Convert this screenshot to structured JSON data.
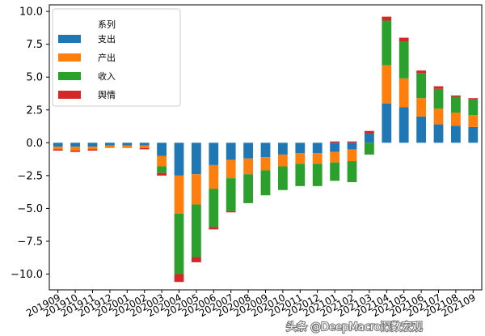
{
  "chart_data": {
    "type": "bar",
    "stacked": true,
    "title": "",
    "xlabel": "",
    "ylabel": "",
    "ylim": [
      -11.2,
      10.5
    ],
    "yticks": [
      -10.0,
      -7.5,
      -5.0,
      -2.5,
      0.0,
      2.5,
      5.0,
      7.5,
      10.0
    ],
    "ytick_labels": [
      "−10.0",
      "−7.5",
      "−5.0",
      "−2.5",
      "0.0",
      "2.5",
      "5.0",
      "7.5",
      "10.0"
    ],
    "categories": [
      "201909",
      "201910",
      "201911",
      "201912",
      "202001",
      "202002",
      "202003",
      "202004",
      "202005",
      "202006",
      "202007",
      "202008",
      "202009",
      "202010",
      "202011",
      "202012",
      "202101",
      "202102",
      "202103",
      "202104",
      "202105",
      "202106",
      "202107",
      "202108",
      "202109"
    ],
    "legend": {
      "title": "系列",
      "position": "upper-left"
    },
    "series": [
      {
        "name": "支出",
        "color": "#1f77b4",
        "values": [
          -0.3,
          -0.3,
          -0.3,
          -0.2,
          -0.2,
          -0.2,
          -1.0,
          -2.5,
          -2.4,
          -1.7,
          -1.3,
          -1.2,
          -1.1,
          -0.9,
          -0.8,
          -0.8,
          -0.7,
          -0.5,
          0.7,
          3.0,
          2.7,
          2.0,
          1.4,
          1.3,
          1.2
        ]
      },
      {
        "name": "产出",
        "color": "#ff7f0e",
        "values": [
          -0.2,
          -0.3,
          -0.2,
          -0.2,
          -0.2,
          -0.2,
          -0.8,
          -2.9,
          -2.3,
          -1.8,
          -1.4,
          -1.2,
          -1.0,
          -0.9,
          -0.8,
          -0.8,
          -0.8,
          -0.9,
          0.0,
          2.9,
          2.2,
          1.4,
          1.2,
          1.0,
          0.9
        ]
      },
      {
        "name": "收入",
        "color": "#2ca02c",
        "values": [
          0.0,
          0.0,
          0.0,
          0.0,
          0.0,
          0.0,
          -0.5,
          -4.6,
          -4.0,
          -2.9,
          -2.5,
          -2.2,
          -1.9,
          -1.8,
          -1.7,
          -1.7,
          -1.4,
          -1.6,
          -0.9,
          3.4,
          2.8,
          1.9,
          1.5,
          1.2,
          1.2
        ]
      },
      {
        "name": "舆情",
        "color": "#d62728",
        "values": [
          -0.1,
          -0.1,
          -0.1,
          0.0,
          0.0,
          -0.1,
          -0.2,
          -0.6,
          -0.4,
          -0.2,
          -0.1,
          0.0,
          0.0,
          0.0,
          0.0,
          0.0,
          0.1,
          0.1,
          0.2,
          0.3,
          0.3,
          0.2,
          0.2,
          0.1,
          0.1
        ]
      }
    ]
  },
  "watermark": "头条 @DeepMacro深数宏观"
}
